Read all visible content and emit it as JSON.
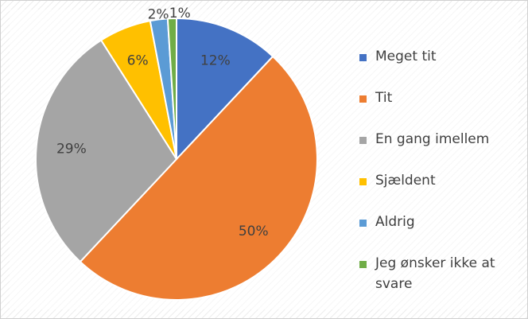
{
  "chart_data": {
    "type": "pie",
    "categories": [
      "Meget tit",
      "Tit",
      "En gang imellem",
      "Sjældent",
      "Aldrig",
      "Jeg ønsker ikke at svare"
    ],
    "values": [
      12,
      50,
      29,
      6,
      2,
      1
    ],
    "value_labels": [
      "12%",
      "50%",
      "29%",
      "6%",
      "2%",
      "1%"
    ],
    "colors": [
      "#4472c4",
      "#ed7d31",
      "#a5a5a5",
      "#ffc000",
      "#5b9bd5",
      "#70ad47"
    ],
    "legend": "right"
  }
}
